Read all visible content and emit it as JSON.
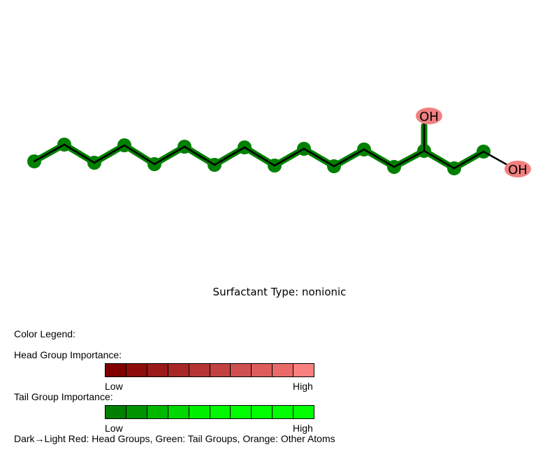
{
  "molecule": {
    "atom_labels": [
      "OH",
      "OH"
    ],
    "colors": {
      "tail_node": "#008000",
      "tail_bond": "#008000",
      "head_node": "#f08080",
      "bond": "#000000"
    }
  },
  "caption": "Surfactant Type: nonionic",
  "legend": {
    "title": "Color Legend:",
    "head_title": "Head Group Importance:",
    "head_colors": [
      "#800000",
      "#8d0d0d",
      "#9a1a1a",
      "#a82828",
      "#b53535",
      "#c24242",
      "#d04f4f",
      "#dd5c5c",
      "#ea6a6a",
      "#fb8080"
    ],
    "tail_title": "Tail Group Importance:",
    "tail_colors": [
      "#008000",
      "#009400",
      "#00b800",
      "#00d800",
      "#00ee00",
      "#00f800",
      "#00fc00",
      "#00ff00",
      "#00ff00",
      "#00ff00"
    ],
    "low": "Low",
    "high": "High",
    "footer": "Dark→Light Red: Head Groups, Green: Tail Groups, Orange: Other Atoms"
  }
}
